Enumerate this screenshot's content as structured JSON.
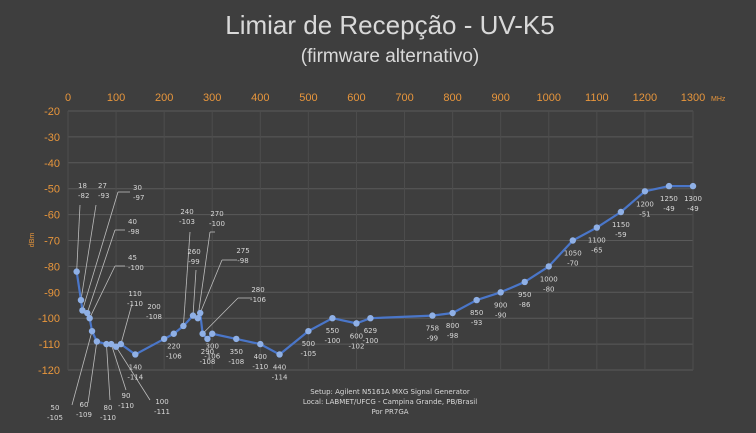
{
  "chart_data": {
    "type": "line",
    "title": "Limiar de Recepção - UV-K5",
    "subtitle": "(firmware alternativo)",
    "xlabel": "",
    "xunit": "MHz",
    "ylabel": "dBm",
    "xlim": [
      0,
      1300
    ],
    "ylim": [
      -120,
      -20
    ],
    "xticks": [
      0,
      100,
      200,
      300,
      400,
      500,
      600,
      700,
      800,
      900,
      1000,
      1100,
      1200,
      1300
    ],
    "yticks": [
      -20,
      -30,
      -40,
      -50,
      -60,
      -70,
      -80,
      -90,
      -100,
      -110,
      -120
    ],
    "grid": true,
    "series": [
      {
        "name": "",
        "color": "#4a76c9",
        "points": [
          {
            "x": 18,
            "y": -82,
            "label_x": "18",
            "label_y": "-82"
          },
          {
            "x": 27,
            "y": -93,
            "label_x": "27",
            "label_y": "-93"
          },
          {
            "x": 30,
            "y": -97,
            "label_x": "30",
            "label_y": "-97"
          },
          {
            "x": 40,
            "y": -98,
            "label_x": "40",
            "label_y": "-98"
          },
          {
            "x": 45,
            "y": -100,
            "label_x": "45",
            "label_y": "-100"
          },
          {
            "x": 50,
            "y": -105,
            "label_x": "50",
            "label_y": "-105"
          },
          {
            "x": 60,
            "y": -109,
            "label_x": "60",
            "label_y": "-109"
          },
          {
            "x": 80,
            "y": -110,
            "label_x": "80",
            "label_y": "-110"
          },
          {
            "x": 90,
            "y": -110,
            "label_x": "90",
            "label_y": "-110"
          },
          {
            "x": 100,
            "y": -111,
            "label_x": "100",
            "label_y": "-111"
          },
          {
            "x": 110,
            "y": -110,
            "label_x": "110",
            "label_y": "-110"
          },
          {
            "x": 140,
            "y": -114,
            "label_x": "140",
            "label_y": "-114"
          },
          {
            "x": 200,
            "y": -108,
            "label_x": "200",
            "label_y": "-108"
          },
          {
            "x": 220,
            "y": -106,
            "label_x": "220",
            "label_y": "-106"
          },
          {
            "x": 240,
            "y": -103,
            "label_x": "240",
            "label_y": "-103"
          },
          {
            "x": 260,
            "y": -99,
            "label_x": "260",
            "label_y": "-99"
          },
          {
            "x": 270,
            "y": -100,
            "label_x": "270",
            "label_y": "-100"
          },
          {
            "x": 275,
            "y": -98,
            "label_x": "275",
            "label_y": "-98"
          },
          {
            "x": 280,
            "y": -106,
            "label_x": "280",
            "label_y": "-106"
          },
          {
            "x": 290,
            "y": -108,
            "label_x": "290",
            "label_y": "-108"
          },
          {
            "x": 300,
            "y": -106,
            "label_x": "300",
            "label_y": "-106"
          },
          {
            "x": 350,
            "y": -108,
            "label_x": "350",
            "label_y": "-108"
          },
          {
            "x": 400,
            "y": -110,
            "label_x": "400",
            "label_y": "-110"
          },
          {
            "x": 440,
            "y": -114,
            "label_x": "440",
            "label_y": "-114"
          },
          {
            "x": 500,
            "y": -105,
            "label_x": "500",
            "label_y": "-105"
          },
          {
            "x": 550,
            "y": -100,
            "label_x": "550",
            "label_y": "-100"
          },
          {
            "x": 600,
            "y": -102,
            "label_x": "600",
            "label_y": "-102"
          },
          {
            "x": 629,
            "y": -100,
            "label_x": "629",
            "label_y": "-100"
          },
          {
            "x": 758,
            "y": -99,
            "label_x": "758",
            "label_y": "-99"
          },
          {
            "x": 800,
            "y": -98,
            "label_x": "800",
            "label_y": "-98"
          },
          {
            "x": 850,
            "y": -93,
            "label_x": "850",
            "label_y": "-93"
          },
          {
            "x": 900,
            "y": -90,
            "label_x": "900",
            "label_y": "-90"
          },
          {
            "x": 950,
            "y": -86,
            "label_x": "950",
            "label_y": "-86"
          },
          {
            "x": 1000,
            "y": -80,
            "label_x": "1000",
            "label_y": "-80"
          },
          {
            "x": 1050,
            "y": -70,
            "label_x": "1050",
            "label_y": "-70"
          },
          {
            "x": 1100,
            "y": -65,
            "label_x": "1100",
            "label_y": "-65"
          },
          {
            "x": 1150,
            "y": -59,
            "label_x": "1150",
            "label_y": "-59"
          },
          {
            "x": 1200,
            "y": -51,
            "label_x": "1200",
            "label_y": "-51"
          },
          {
            "x": 1250,
            "y": -49,
            "label_x": "1250",
            "label_y": "-49"
          },
          {
            "x": 1300,
            "y": -49,
            "label_x": "1300",
            "label_y": "-49"
          }
        ]
      }
    ],
    "annotations": [
      "Setup: Agilent N5161A MXG Signal Generator",
      "Local: LABMET/UFCG - Campina Grande, PB/Brasil",
      "Por PR7GA"
    ],
    "colors": {
      "background": "#3e3e3e",
      "axis_text": "#e8963c",
      "line": "#4a76c9",
      "point": "#8fb0e6"
    }
  }
}
